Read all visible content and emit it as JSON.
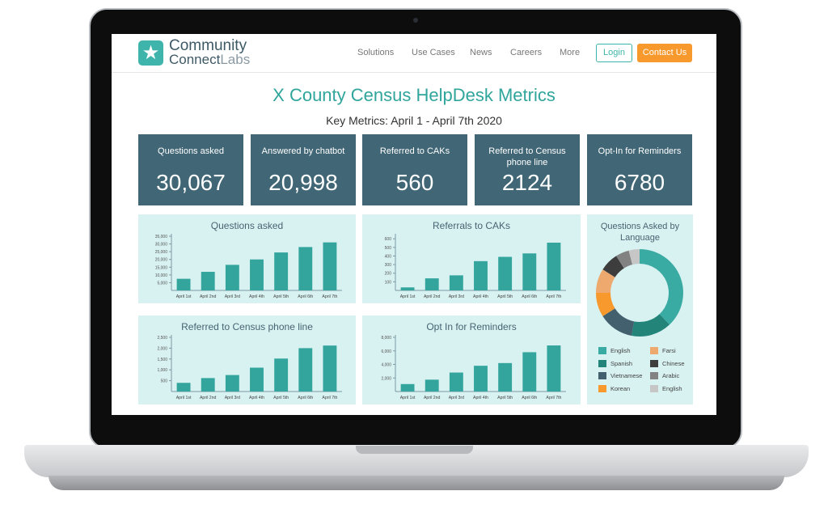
{
  "nav": {
    "logo_line1": "Community",
    "logo_line2a": "Connect",
    "logo_line2b": "Labs",
    "items": [
      "Solutions",
      "Use Cases",
      "News",
      "Careers",
      "More"
    ],
    "login": "Login",
    "contact": "Contact Us"
  },
  "page": {
    "title": "X County Census HelpDesk Metrics",
    "subtitle": "Key Metrics: April 1 - April 7th 2020"
  },
  "kpis": [
    {
      "label": "Questions asked",
      "value": "30,067"
    },
    {
      "label": "Answered by chatbot",
      "value": "20,998"
    },
    {
      "label": "Referred to CAKs",
      "value": "560"
    },
    {
      "label": "Referred to Census phone line",
      "value": "2124"
    },
    {
      "label": "Opt-In for Reminders",
      "value": "6780"
    }
  ],
  "colors": {
    "bar": "#33a59d",
    "kpi_bg": "#416675",
    "card_bg": "#d8f1f1",
    "accent": "#3fb4ab",
    "cta": "#f7992d"
  },
  "chart_data": [
    {
      "type": "bar",
      "title": "Questions asked",
      "categories": [
        "April 1st",
        "April 2nd",
        "April 3rd",
        "April 4th",
        "April 5th",
        "April 6th",
        "April 7th"
      ],
      "values": [
        7500,
        12000,
        16500,
        20000,
        24500,
        28000,
        31000
      ],
      "ylim": [
        0,
        35000
      ],
      "yticks": [
        "5,000",
        "10,000",
        "15,000",
        "20,000",
        "25,000",
        "30,000",
        "35,000"
      ],
      "ytick_values": [
        5000,
        10000,
        15000,
        20000,
        25000,
        30000,
        35000
      ]
    },
    {
      "type": "bar",
      "title": "Referrals to CAKs",
      "categories": [
        "April 1st",
        "April 2nd",
        "April 3rd",
        "April 4th",
        "April 5th",
        "April 6th",
        "April 7th"
      ],
      "values": [
        35,
        140,
        175,
        340,
        390,
        430,
        555
      ],
      "ylim": [
        0,
        630
      ],
      "yticks": [
        "100",
        "200",
        "300",
        "400",
        "500",
        "600"
      ],
      "ytick_values": [
        100,
        200,
        300,
        400,
        500,
        600
      ]
    },
    {
      "type": "bar",
      "title": "Referred to Census phone line",
      "categories": [
        "April 1st",
        "April 2nd",
        "April 3rd",
        "April 4th",
        "April 5th",
        "April 6th",
        "April 7th"
      ],
      "values": [
        400,
        620,
        760,
        1100,
        1520,
        2000,
        2120
      ],
      "ylim": [
        0,
        2500
      ],
      "yticks": [
        "500",
        "1,000",
        "1,500",
        "2,000",
        "2,500"
      ],
      "ytick_values": [
        500,
        1000,
        1500,
        2000,
        2500
      ]
    },
    {
      "type": "bar",
      "title": "Opt In for Reminders",
      "categories": [
        "April 1st",
        "April 2nd",
        "April 3rd",
        "April 4th",
        "April 5th",
        "April 6th",
        "April 7th"
      ],
      "values": [
        1100,
        1750,
        2800,
        3800,
        4200,
        5800,
        6800
      ],
      "ylim": [
        0,
        8000
      ],
      "yticks": [
        "2,000",
        "4,000",
        "6,000",
        "8,000"
      ],
      "ytick_values": [
        2000,
        4000,
        6000,
        8000
      ]
    },
    {
      "type": "pie",
      "donut": true,
      "title": "Questions Asked by Language",
      "slices": [
        {
          "name": "English",
          "value": 38,
          "color": "#3aaba3"
        },
        {
          "name": "Spanish",
          "value": 15,
          "color": "#23847a"
        },
        {
          "name": "Vietnamese",
          "value": 13,
          "color": "#42606e"
        },
        {
          "name": "Korean",
          "value": 9,
          "color": "#f7992d"
        },
        {
          "name": "Farsi",
          "value": 9,
          "color": "#eeaa6e"
        },
        {
          "name": "Chinese",
          "value": 7,
          "color": "#3d3d3d"
        },
        {
          "name": "Arabic",
          "value": 5,
          "color": "#828282"
        },
        {
          "name": "English",
          "value": 4,
          "color": "#c6c6c6"
        }
      ],
      "legend_order": [
        0,
        4,
        1,
        5,
        2,
        6,
        3,
        7
      ]
    }
  ]
}
